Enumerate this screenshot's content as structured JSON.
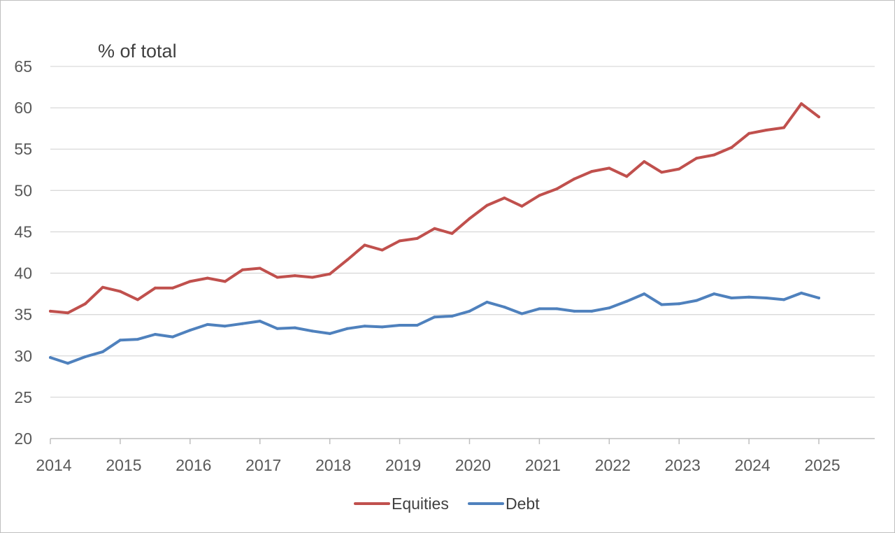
{
  "chart_data": {
    "type": "line",
    "unit_label": "% of total",
    "ylim": [
      20,
      65
    ],
    "y_ticks": [
      20,
      25,
      30,
      35,
      40,
      45,
      50,
      55,
      60,
      65
    ],
    "xlim": [
      2014,
      2025.8
    ],
    "x_ticks": [
      "2014",
      "2015",
      "2016",
      "2017",
      "2018",
      "2019",
      "2020",
      "2021",
      "2022",
      "2023",
      "2024",
      "2025"
    ],
    "grid": "horizontal",
    "legend_position": "bottom",
    "colors": {
      "Equities": "#c0504d",
      "Debt": "#4f81bd"
    },
    "x": [
      2014.0,
      2014.25,
      2014.5,
      2014.75,
      2015.0,
      2015.25,
      2015.5,
      2015.75,
      2016.0,
      2016.25,
      2016.5,
      2016.75,
      2017.0,
      2017.25,
      2017.5,
      2017.75,
      2018.0,
      2018.25,
      2018.5,
      2018.75,
      2019.0,
      2019.25,
      2019.5,
      2019.75,
      2020.0,
      2020.25,
      2020.5,
      2020.75,
      2021.0,
      2021.25,
      2021.5,
      2021.75,
      2022.0,
      2022.25,
      2022.5,
      2022.75,
      2023.0,
      2023.25,
      2023.5,
      2023.75,
      2024.0,
      2024.25,
      2024.5,
      2024.75,
      2025.0
    ],
    "series": [
      {
        "name": "Equities",
        "values": [
          35.4,
          35.2,
          36.3,
          38.3,
          37.8,
          36.8,
          38.2,
          38.2,
          39.0,
          39.4,
          39.0,
          40.4,
          40.6,
          39.5,
          39.7,
          39.5,
          39.9,
          41.6,
          43.4,
          42.8,
          43.9,
          44.2,
          45.4,
          44.8,
          46.6,
          48.2,
          49.1,
          48.1,
          49.4,
          50.2,
          51.4,
          52.3,
          52.7,
          51.7,
          53.5,
          52.2,
          52.6,
          53.9,
          54.3,
          55.2,
          56.9,
          57.3,
          57.6,
          60.5,
          58.9
        ]
      },
      {
        "name": "Debt",
        "values": [
          29.8,
          29.1,
          29.9,
          30.5,
          31.9,
          32.0,
          32.6,
          32.3,
          33.1,
          33.8,
          33.6,
          33.9,
          34.2,
          33.3,
          33.4,
          33.0,
          32.7,
          33.3,
          33.6,
          33.5,
          33.7,
          33.7,
          34.7,
          34.8,
          35.4,
          36.5,
          35.9,
          35.1,
          35.7,
          35.7,
          35.4,
          35.4,
          35.8,
          36.6,
          37.5,
          36.2,
          36.3,
          36.7,
          37.5,
          37.0,
          37.1,
          37.0,
          36.8,
          37.6,
          37.0
        ]
      }
    ]
  }
}
